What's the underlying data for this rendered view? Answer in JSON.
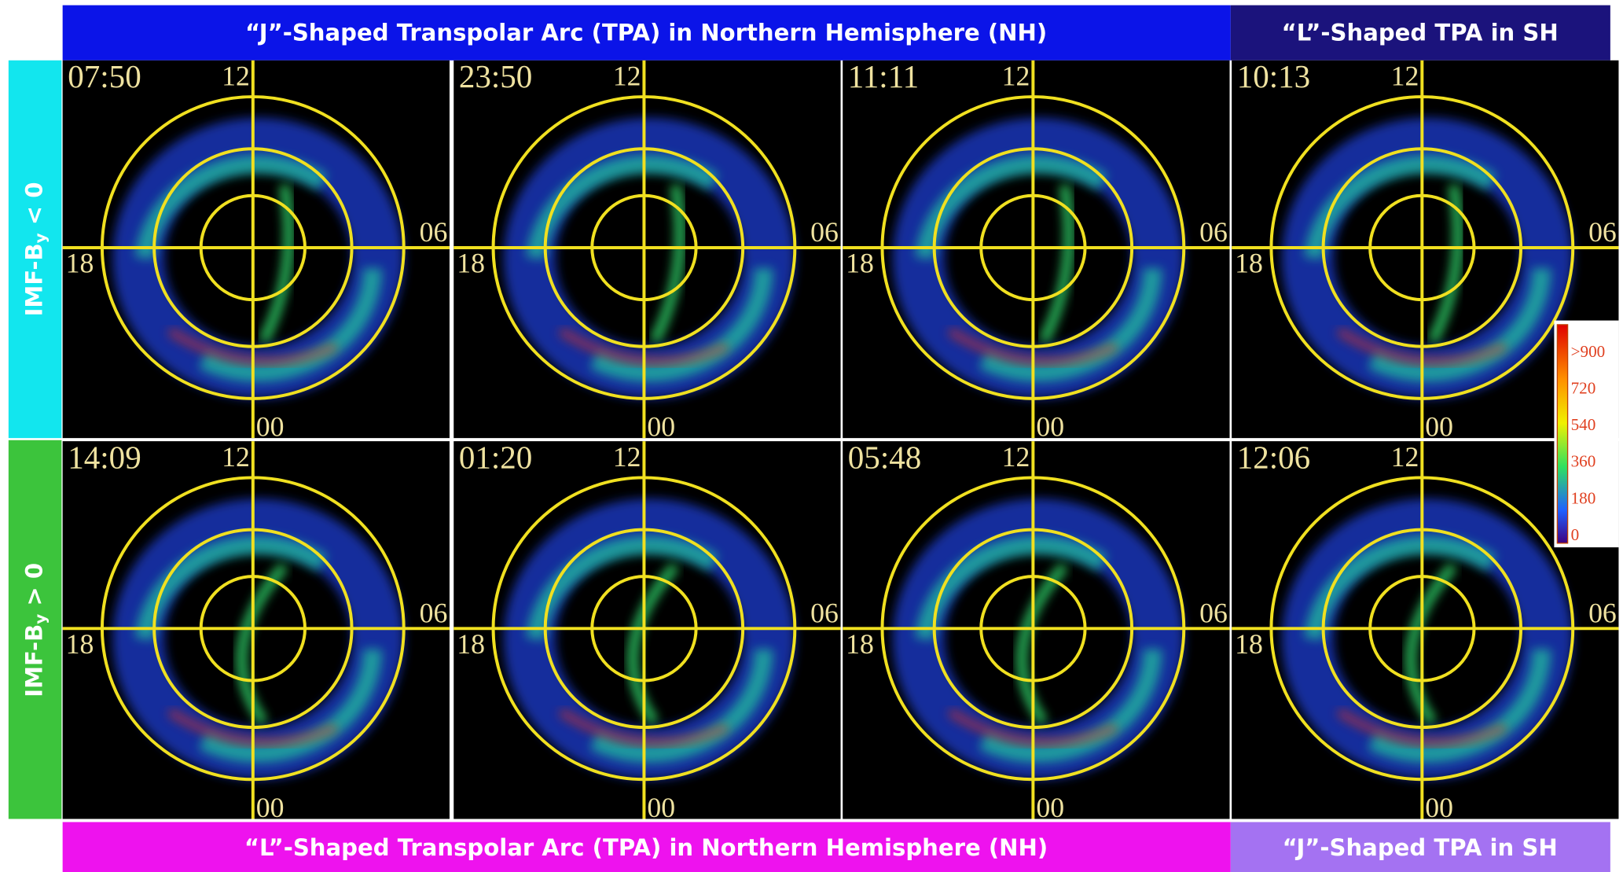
{
  "header": {
    "top_left": "“J”-Shaped Transpolar Arc (TPA) in Northern Hemisphere (NH)",
    "top_right": "“L”-Shaped TPA in SH",
    "bottom_left": "“L”-Shaped Transpolar Arc (TPA) in Northern Hemisphere (NH)",
    "bottom_right": "“J”-Shaped TPA in SH"
  },
  "rows": [
    {
      "label_main": "IMF-B",
      "label_sub": "y",
      "label_rest": " < 0",
      "times": [
        "07:50",
        "23:50",
        "11:11",
        "10:13"
      ]
    },
    {
      "label_main": "IMF-B",
      "label_sub": "y",
      "label_rest": " > 0",
      "times": [
        "14:09",
        "01:20",
        "05:48",
        "12:06"
      ]
    }
  ],
  "dial_labels": {
    "top": "12",
    "right": "06",
    "left": "18",
    "bottom": "00"
  },
  "colorbar": {
    "labels": [
      ">900",
      "720",
      "540",
      "360",
      "180",
      "0"
    ]
  }
}
